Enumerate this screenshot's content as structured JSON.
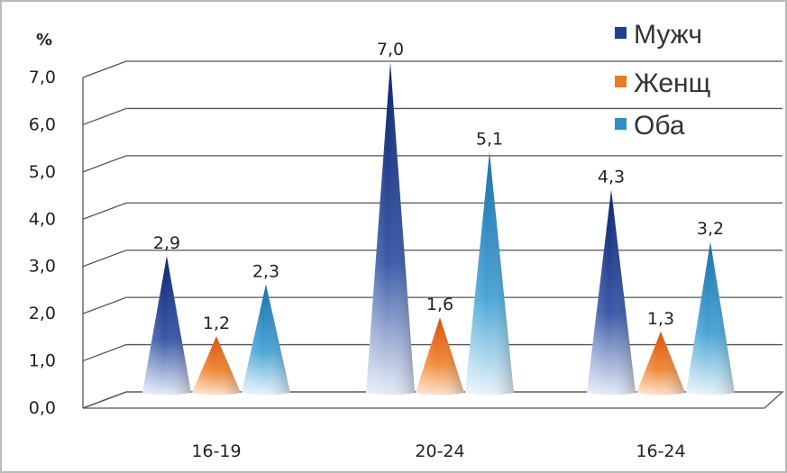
{
  "chart_data": {
    "type": "bar",
    "style": "3d-cone",
    "unit_label": "%",
    "ylim": [
      0,
      7
    ],
    "yticks": [
      "0,0",
      "1,0",
      "2,0",
      "3,0",
      "4,0",
      "5,0",
      "6,0",
      "7,0"
    ],
    "categories": [
      "16-19",
      "20-24",
      "16-24"
    ],
    "series": [
      {
        "name": "Мужч",
        "values": [
          2.9,
          7.0,
          4.3
        ],
        "labels": [
          "2,9",
          "7,0",
          "4,3"
        ],
        "color": "#1f3f8f"
      },
      {
        "name": "Женщ",
        "values": [
          1.2,
          1.6,
          1.3
        ],
        "labels": [
          "1,2",
          "1,6",
          "1,3"
        ],
        "color": "#ee7a22"
      },
      {
        "name": "Оба",
        "values": [
          2.3,
          5.1,
          3.2
        ],
        "labels": [
          "2,3",
          "5,1",
          "3,2"
        ],
        "color": "#2e8fc6"
      }
    ],
    "grid": true,
    "legend_position": "top-right"
  }
}
